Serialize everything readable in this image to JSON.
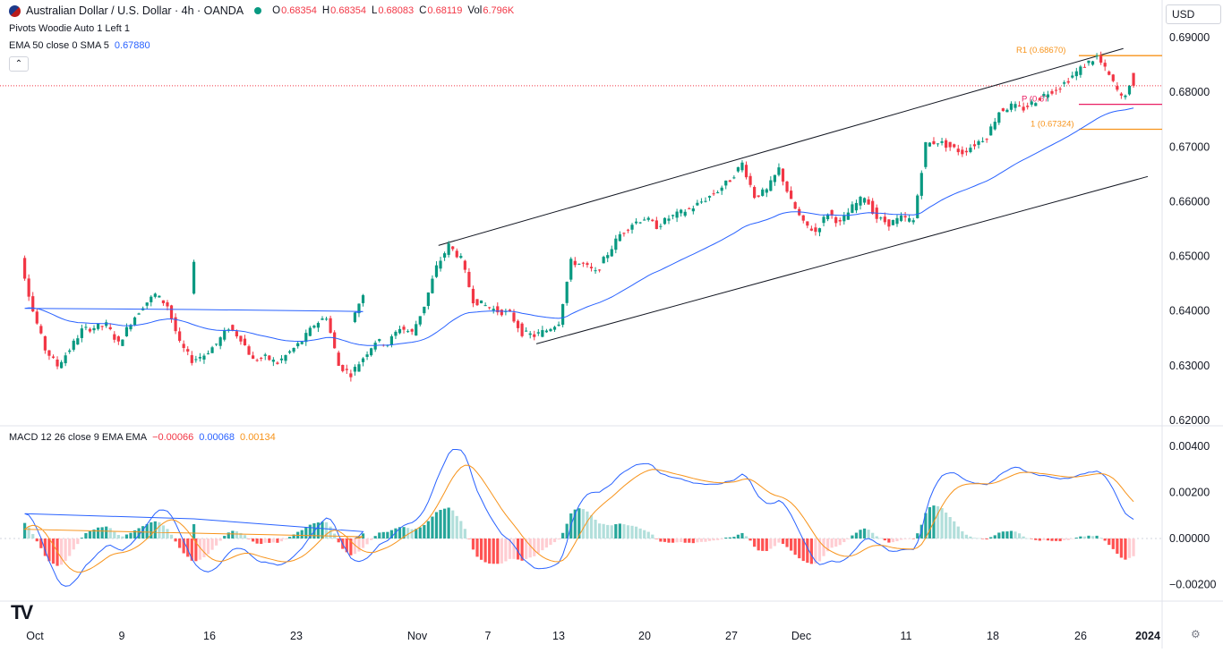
{
  "header": {
    "symbol_title": "Australian Dollar / U.S. Dollar · 4h · OANDA",
    "open_label": "O",
    "open": "0.68354",
    "high_label": "H",
    "high": "0.68354",
    "low_label": "L",
    "low": "0.68083",
    "close_label": "C",
    "close": "0.68119",
    "vol_label": "Vol",
    "vol": "6.796K",
    "currency": "USD"
  },
  "indicators": {
    "pivots": "Pivots Woodie Auto 1 Left 1",
    "ema": "EMA 50 close 0 SMA 5",
    "ema_value": "0.67880",
    "macd": "MACD 12 26 close 9 EMA EMA",
    "macd_hist": "−0.00066",
    "macd_line": "0.00068",
    "macd_signal": "0.00134"
  },
  "colors": {
    "up": "#089981",
    "down": "#f23645",
    "ema": "#2962ff",
    "signal": "#f7931a",
    "pivot_r": "#f7931a",
    "pivot_p": "#e91e63"
  },
  "chart_data": {
    "type": "candlestick",
    "price_axis": {
      "ticks": [
        "0.69000",
        "0.68000",
        "0.67000",
        "0.66000",
        "0.65000",
        "0.64000",
        "0.63000",
        "0.62000"
      ],
      "range": [
        0.62,
        0.69
      ]
    },
    "macd_axis": {
      "ticks": [
        "0.00400",
        "0.00200",
        "0.00000",
        "-0.00200"
      ],
      "range": [
        -0.0028,
        0.0042
      ]
    },
    "time_labels": [
      "Oct",
      "9",
      "16",
      "23",
      "Nov",
      "7",
      "13",
      "20",
      "27",
      "Dec",
      "11",
      "18",
      "26",
      "2024"
    ],
    "pivots": [
      {
        "label": "R1 (0.68670)",
        "value": 0.6867
      },
      {
        "label": "P (0.67",
        "value": 0.6778
      },
      {
        "label": "1 (0.67324)",
        "value": 0.67324
      }
    ],
    "channel": {
      "upper": [
        [
          "Nov 4",
          0.652
        ],
        [
          "Dec 30",
          0.688
        ]
      ],
      "lower": [
        [
          "Nov 12",
          0.634
        ],
        [
          "Jan 1",
          0.6646
        ]
      ]
    },
    "price_path": [
      [
        "Sep 29",
        0.638
      ],
      [
        "Sep 30",
        0.643
      ],
      [
        "Oct 1",
        0.6495
      ],
      [
        "Oct 2",
        0.64
      ],
      [
        "Oct 3",
        0.633
      ],
      [
        "Oct 4",
        0.63
      ],
      [
        "Oct 5",
        0.633
      ],
      [
        "Oct 6",
        0.6365
      ],
      [
        "Oct 8",
        0.6375
      ],
      [
        "Oct 9",
        0.634
      ],
      [
        "Oct 10",
        0.638
      ],
      [
        "Oct 11",
        0.641
      ],
      [
        "Oct 12",
        0.643
      ],
      [
        "Oct 13",
        0.641
      ],
      [
        "Oct 14",
        0.634
      ],
      [
        "Oct 15",
        0.631
      ],
      [
        "Oct 16",
        0.632
      ],
      [
        "Oct 17",
        0.634
      ],
      [
        "Oct 18",
        0.637
      ],
      [
        "Oct 19",
        0.635
      ],
      [
        "Oct 20",
        0.631
      ],
      [
        "Oct 21",
        0.6315
      ],
      [
        "Oct 22",
        0.6305
      ],
      [
        "Oct 23",
        0.6325
      ],
      [
        "Oct 24",
        0.6345
      ],
      [
        "Oct 25",
        0.6375
      ],
      [
        "Oct 26",
        0.639
      ],
      [
        "Oct 27",
        0.63
      ],
      [
        "Oct 28",
        0.6285
      ],
      [
        "Oct 29",
        0.6315
      ],
      [
        "Oct 30",
        0.6345
      ],
      [
        "Oct 31",
        0.634
      ],
      [
        "Nov 1",
        0.637
      ],
      [
        "Nov 2",
        0.636
      ],
      [
        "Nov 3",
        0.641
      ],
      [
        "Nov 4",
        0.648
      ],
      [
        "Nov 5",
        0.652
      ],
      [
        "Nov 6",
        0.6495
      ],
      [
        "Nov 7",
        0.642
      ],
      [
        "Nov 8",
        0.641
      ],
      [
        "Nov 9",
        0.64
      ],
      [
        "Nov 10",
        0.6395
      ],
      [
        "Nov 11",
        0.636
      ],
      [
        "Nov 12",
        0.6355
      ],
      [
        "Nov 13",
        0.6365
      ],
      [
        "Nov 14",
        0.638
      ],
      [
        "Nov 15",
        0.649
      ],
      [
        "Nov 16",
        0.6485
      ],
      [
        "Nov 17",
        0.647
      ],
      [
        "Nov 18",
        0.6505
      ],
      [
        "Nov 19",
        0.654
      ],
      [
        "Nov 20",
        0.656
      ],
      [
        "Nov 21",
        0.657
      ],
      [
        "Nov 22",
        0.6555
      ],
      [
        "Nov 23",
        0.657
      ],
      [
        "Nov 24",
        0.658
      ],
      [
        "Nov 25",
        0.659
      ],
      [
        "Nov 26",
        0.6605
      ],
      [
        "Nov 27",
        0.662
      ],
      [
        "Nov 28",
        0.664
      ],
      [
        "Nov 29",
        0.667
      ],
      [
        "Nov 30",
        0.661
      ],
      [
        "Dec 1",
        0.662
      ],
      [
        "Dec 2",
        0.666
      ],
      [
        "Dec 3",
        0.66
      ],
      [
        "Dec 4",
        0.656
      ],
      [
        "Dec 5",
        0.6545
      ],
      [
        "Dec 6",
        0.658
      ],
      [
        "Dec 7",
        0.656
      ],
      [
        "Dec 8",
        0.659
      ],
      [
        "Dec 9",
        0.661
      ],
      [
        "Dec 10",
        0.657
      ],
      [
        "Dec 11",
        0.656
      ],
      [
        "Dec 12",
        0.657
      ],
      [
        "Dec 13",
        0.6565
      ],
      [
        "Dec 14",
        0.6705
      ],
      [
        "Dec 15",
        0.671
      ],
      [
        "Dec 16",
        0.67
      ],
      [
        "Dec 17",
        0.669
      ],
      [
        "Dec 18",
        0.6705
      ],
      [
        "Dec 19",
        0.672
      ],
      [
        "Dec 20",
        0.6765
      ],
      [
        "Dec 21",
        0.6775
      ],
      [
        "Dec 22",
        0.677
      ],
      [
        "Dec 23",
        0.6785
      ],
      [
        "Dec 24",
        0.68
      ],
      [
        "Dec 25",
        0.681
      ],
      [
        "Dec 26",
        0.683
      ],
      [
        "Dec 27",
        0.685
      ],
      [
        "Dec 28",
        0.6865
      ],
      [
        "Dec 29",
        0.683
      ],
      [
        "Dec 30",
        0.679
      ],
      [
        "Dec 31",
        0.6815
      ]
    ],
    "last_price": 0.68119
  }
}
